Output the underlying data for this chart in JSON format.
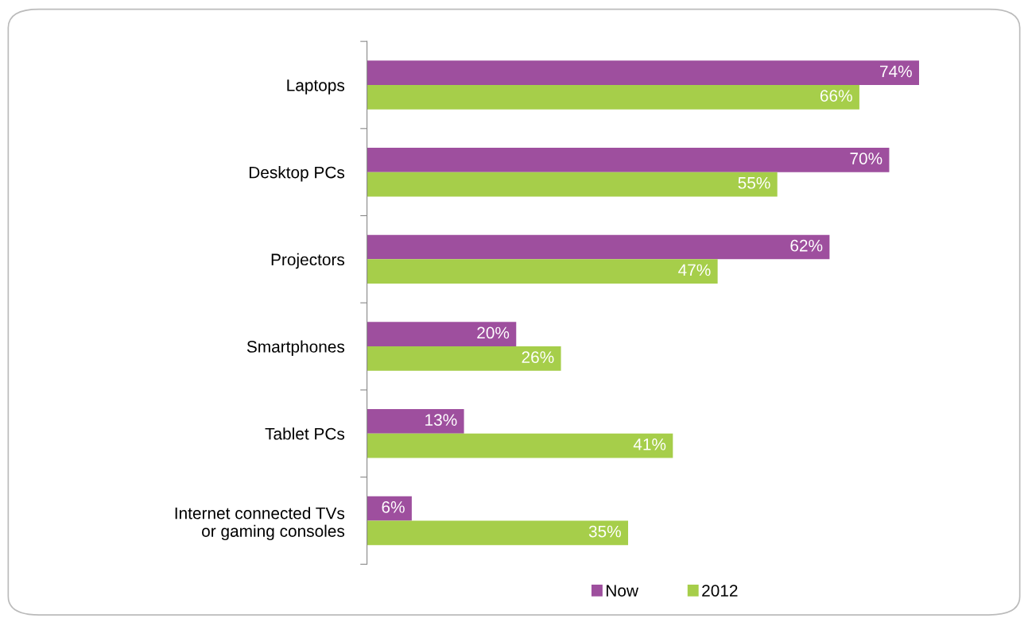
{
  "chart_data": {
    "type": "bar",
    "orientation": "horizontal",
    "categories": [
      "Laptops",
      "Desktop PCs",
      "Projectors",
      "Smartphones",
      "Tablet PCs",
      "Internet connected TVs\nor gaming consoles"
    ],
    "series": [
      {
        "name": "Now",
        "color": "#9e4f9e",
        "values": [
          74,
          70,
          62,
          20,
          13,
          6
        ],
        "value_labels": [
          "74%",
          "70%",
          "62%",
          "20%",
          "13%",
          "6%"
        ]
      },
      {
        "name": "2012",
        "color": "#a6ce4a",
        "values": [
          66,
          55,
          47,
          26,
          41,
          35
        ],
        "value_labels": [
          "66%",
          "55%",
          "47%",
          "26%",
          "41%",
          "35%"
        ]
      }
    ],
    "legend": "bottom",
    "grid": false
  }
}
